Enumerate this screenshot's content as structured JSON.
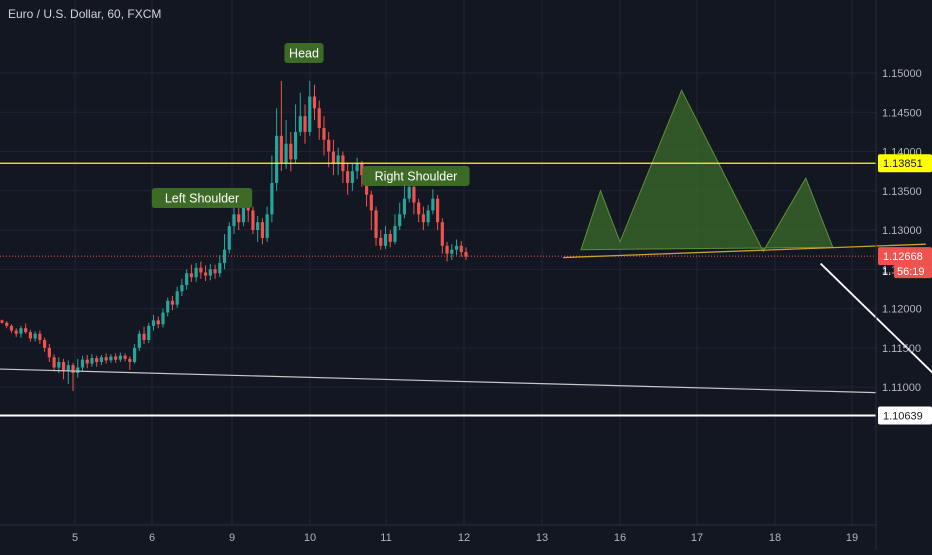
{
  "symbol": {
    "title": "Euro / U.S. Dollar, 60, FXCM"
  },
  "colors": {
    "background": "#131722",
    "grid": "#1f2433",
    "up": "#26a69a",
    "down": "#ef5350",
    "pattern_fill": "#3b6b2a",
    "label_bg": "#3d6a25",
    "resistance": "#ffff00",
    "neckline": "#c9a227",
    "current_price": "#ef5350",
    "arrow": "#ffffff",
    "axis_text": "#b2b5be"
  },
  "chart_data": {
    "type": "candlestick",
    "title": "Euro / U.S. Dollar, 60, FXCM",
    "x_ticks": [
      "5",
      "6",
      "9",
      "10",
      "11",
      "12",
      "13",
      "16",
      "17",
      "18",
      "19"
    ],
    "y_ticks": [
      "1.15000",
      "1.14500",
      "1.14000",
      "1.13500",
      "1.13000",
      "1.12500",
      "1.12000",
      "1.11500",
      "1.11000"
    ],
    "ylim": [
      1.1055,
      1.1555
    ],
    "grid": true,
    "resistance_level": 1.13851,
    "resistance_label": "1.13851",
    "current_price": 1.12668,
    "current_price_label": "1.12668",
    "countdown_label": "56:19",
    "countdown_prefix": "1.",
    "low_level": 1.10639,
    "low_level_label": "1.10639",
    "pattern_labels": [
      "Left Shoulder",
      "Head",
      "Right Shoulder"
    ],
    "pattern_points": [
      {
        "day": 6.5,
        "price": 1.1275
      },
      {
        "day": 6.75,
        "price": 1.135
      },
      {
        "day": 7.0,
        "price": 1.1285
      },
      {
        "day": 7.8,
        "price": 1.1478
      },
      {
        "day": 8.85,
        "price": 1.1273
      },
      {
        "day": 9.4,
        "price": 1.1366
      },
      {
        "day": 9.75,
        "price": 1.1278
      }
    ],
    "neckline": [
      {
        "day": 6.27,
        "price": 1.1265
      },
      {
        "day": 10.95,
        "price": 1.1282
      }
    ],
    "trendline": [
      {
        "day": 3.0,
        "price": 1.1123
      },
      {
        "day": 13.0,
        "price": 1.1093
      }
    ],
    "forecast_arrow": [
      {
        "day": 9.8,
        "price": 1.1265
      },
      {
        "day": 11.1,
        "price": 1.11
      }
    ],
    "candles": [
      [
        1.1185,
        1.1182,
        1.1186,
        1.1181
      ],
      [
        1.1182,
        1.1178,
        1.1184,
        1.1175
      ],
      [
        1.1178,
        1.1172,
        1.118,
        1.1169
      ],
      [
        1.1172,
        1.1168,
        1.1175,
        1.1164
      ],
      [
        1.1168,
        1.1175,
        1.1178,
        1.1163
      ],
      [
        1.1175,
        1.117,
        1.1181,
        1.1168
      ],
      [
        1.117,
        1.1162,
        1.1173,
        1.1158
      ],
      [
        1.1162,
        1.1168,
        1.1171,
        1.1158
      ],
      [
        1.1168,
        1.116,
        1.1172,
        1.1155
      ],
      [
        1.116,
        1.115,
        1.1163,
        1.1145
      ],
      [
        1.115,
        1.1138,
        1.1155,
        1.1132
      ],
      [
        1.1138,
        1.1125,
        1.1142,
        1.112
      ],
      [
        1.1125,
        1.1132,
        1.1138,
        1.1118
      ],
      [
        1.1132,
        1.112,
        1.1136,
        1.111
      ],
      [
        1.112,
        1.1128,
        1.1134,
        1.1104
      ],
      [
        1.1128,
        1.1118,
        1.1131,
        1.1095
      ],
      [
        1.1118,
        1.1125,
        1.1136,
        1.1112
      ],
      [
        1.1125,
        1.1135,
        1.114,
        1.112
      ],
      [
        1.1135,
        1.113,
        1.1141,
        1.1124
      ],
      [
        1.113,
        1.1137,
        1.1142,
        1.1126
      ],
      [
        1.1137,
        1.1132,
        1.114,
        1.1126
      ],
      [
        1.1132,
        1.1138,
        1.1141,
        1.1128
      ],
      [
        1.1138,
        1.1134,
        1.1143,
        1.113
      ],
      [
        1.1134,
        1.1139,
        1.1142,
        1.1131
      ],
      [
        1.1139,
        1.1135,
        1.1143,
        1.1131
      ],
      [
        1.1135,
        1.114,
        1.1144,
        1.1132
      ],
      [
        1.114,
        1.1136,
        1.1143,
        1.1133
      ],
      [
        1.1136,
        1.1132,
        1.1139,
        1.1122
      ],
      [
        1.1132,
        1.115,
        1.1155,
        1.113
      ],
      [
        1.115,
        1.1168,
        1.1172,
        1.1146
      ],
      [
        1.1168,
        1.116,
        1.1177,
        1.1155
      ],
      [
        1.116,
        1.1178,
        1.1182,
        1.1156
      ],
      [
        1.1178,
        1.1185,
        1.1192,
        1.1172
      ],
      [
        1.1185,
        1.118,
        1.119,
        1.1175
      ],
      [
        1.118,
        1.1195,
        1.12,
        1.1176
      ],
      [
        1.1195,
        1.121,
        1.1214,
        1.119
      ],
      [
        1.121,
        1.1205,
        1.1216,
        1.1198
      ],
      [
        1.1205,
        1.1222,
        1.1228,
        1.1201
      ],
      [
        1.1222,
        1.123,
        1.1238,
        1.1216
      ],
      [
        1.123,
        1.1245,
        1.125,
        1.1224
      ],
      [
        1.1245,
        1.124,
        1.1256,
        1.1234
      ],
      [
        1.124,
        1.1252,
        1.1258,
        1.1234
      ],
      [
        1.1252,
        1.1246,
        1.126,
        1.1238
      ],
      [
        1.1246,
        1.1242,
        1.1255,
        1.1235
      ],
      [
        1.1242,
        1.125,
        1.1257,
        1.1236
      ],
      [
        1.125,
        1.1245,
        1.1256,
        1.1238
      ],
      [
        1.1245,
        1.1258,
        1.1268,
        1.124
      ],
      [
        1.1258,
        1.1275,
        1.1295,
        1.125
      ],
      [
        1.1275,
        1.1305,
        1.131,
        1.127
      ],
      [
        1.1305,
        1.132,
        1.1335,
        1.1295
      ],
      [
        1.132,
        1.131,
        1.134,
        1.13
      ],
      [
        1.131,
        1.1335,
        1.1345,
        1.1305
      ],
      [
        1.1335,
        1.1325,
        1.1345,
        1.131
      ],
      [
        1.1325,
        1.13,
        1.133,
        1.1295
      ],
      [
        1.13,
        1.131,
        1.1318,
        1.1285
      ],
      [
        1.131,
        1.129,
        1.1315,
        1.1282
      ],
      [
        1.129,
        1.132,
        1.133,
        1.1285
      ],
      [
        1.132,
        1.136,
        1.1395,
        1.131
      ],
      [
        1.136,
        1.142,
        1.1455,
        1.135
      ],
      [
        1.142,
        1.1385,
        1.149,
        1.1375
      ],
      [
        1.1385,
        1.141,
        1.144,
        1.1378
      ],
      [
        1.141,
        1.139,
        1.1425,
        1.1375
      ],
      [
        1.139,
        1.1425,
        1.146,
        1.1385
      ],
      [
        1.1425,
        1.1445,
        1.1475,
        1.142
      ],
      [
        1.1445,
        1.1425,
        1.146,
        1.141
      ],
      [
        1.1425,
        1.147,
        1.149,
        1.142
      ],
      [
        1.147,
        1.1455,
        1.1485,
        1.144
      ],
      [
        1.1455,
        1.143,
        1.1465,
        1.1415
      ],
      [
        1.143,
        1.1415,
        1.1445,
        1.1395
      ],
      [
        1.1415,
        1.14,
        1.1425,
        1.138
      ],
      [
        1.14,
        1.1385,
        1.1415,
        1.137
      ],
      [
        1.1385,
        1.1395,
        1.1405,
        1.137
      ],
      [
        1.1395,
        1.1375,
        1.14,
        1.136
      ],
      [
        1.1375,
        1.136,
        1.1385,
        1.1345
      ],
      [
        1.136,
        1.1375,
        1.1385,
        1.135
      ],
      [
        1.1375,
        1.1385,
        1.1392,
        1.1365
      ],
      [
        1.1385,
        1.137,
        1.1388,
        1.1355
      ],
      [
        1.137,
        1.1345,
        1.1375,
        1.133
      ],
      [
        1.1345,
        1.1325,
        1.135,
        1.13
      ],
      [
        1.1325,
        1.129,
        1.133,
        1.128
      ],
      [
        1.129,
        1.128,
        1.13,
        1.1275
      ],
      [
        1.128,
        1.1295,
        1.1305,
        1.1276
      ],
      [
        1.1295,
        1.1285,
        1.13,
        1.1278
      ],
      [
        1.1285,
        1.1305,
        1.132,
        1.1282
      ],
      [
        1.1305,
        1.132,
        1.1335,
        1.13
      ],
      [
        1.132,
        1.134,
        1.1362,
        1.1315
      ],
      [
        1.134,
        1.1355,
        1.1365,
        1.1335
      ],
      [
        1.1355,
        1.1335,
        1.136,
        1.132
      ],
      [
        1.1335,
        1.132,
        1.134,
        1.131
      ],
      [
        1.132,
        1.131,
        1.133,
        1.13
      ],
      [
        1.131,
        1.1325,
        1.1332,
        1.1305
      ],
      [
        1.1325,
        1.134,
        1.1352,
        1.132
      ],
      [
        1.134,
        1.131,
        1.1345,
        1.13
      ],
      [
        1.131,
        1.128,
        1.1315,
        1.127
      ],
      [
        1.128,
        1.127,
        1.1285,
        1.126
      ],
      [
        1.127,
        1.1275,
        1.1282,
        1.1262
      ],
      [
        1.1275,
        1.128,
        1.1288,
        1.1268
      ],
      [
        1.128,
        1.1272,
        1.1286,
        1.1266
      ],
      [
        1.1272,
        1.1266,
        1.1278,
        1.1262
      ]
    ]
  }
}
